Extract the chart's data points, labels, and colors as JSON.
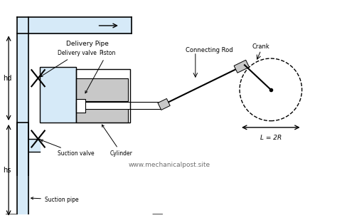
{
  "bg_color": "#ffffff",
  "light_blue": "#d6eaf8",
  "blue_border": "#5dade2",
  "gray": "#a0a0a0",
  "dark_gray": "#808080",
  "light_gray": "#c8c8c8",
  "black": "#000000",
  "text_color": "#000000",
  "website": "www.mechanicalpost.site",
  "labels": {
    "delivery_pipe": "Delivery Pipe",
    "delivery_valve": "Delivery valve",
    "piston": "Piston",
    "connecting_rod": "Connecting Rod",
    "crank": "Crank",
    "suction_valve": "Suction valve",
    "cylinder": "Cylinder",
    "suction_pipe": "Suction pipe",
    "hd": "hd",
    "hs": "hs",
    "L_eq": "L = 2R"
  }
}
